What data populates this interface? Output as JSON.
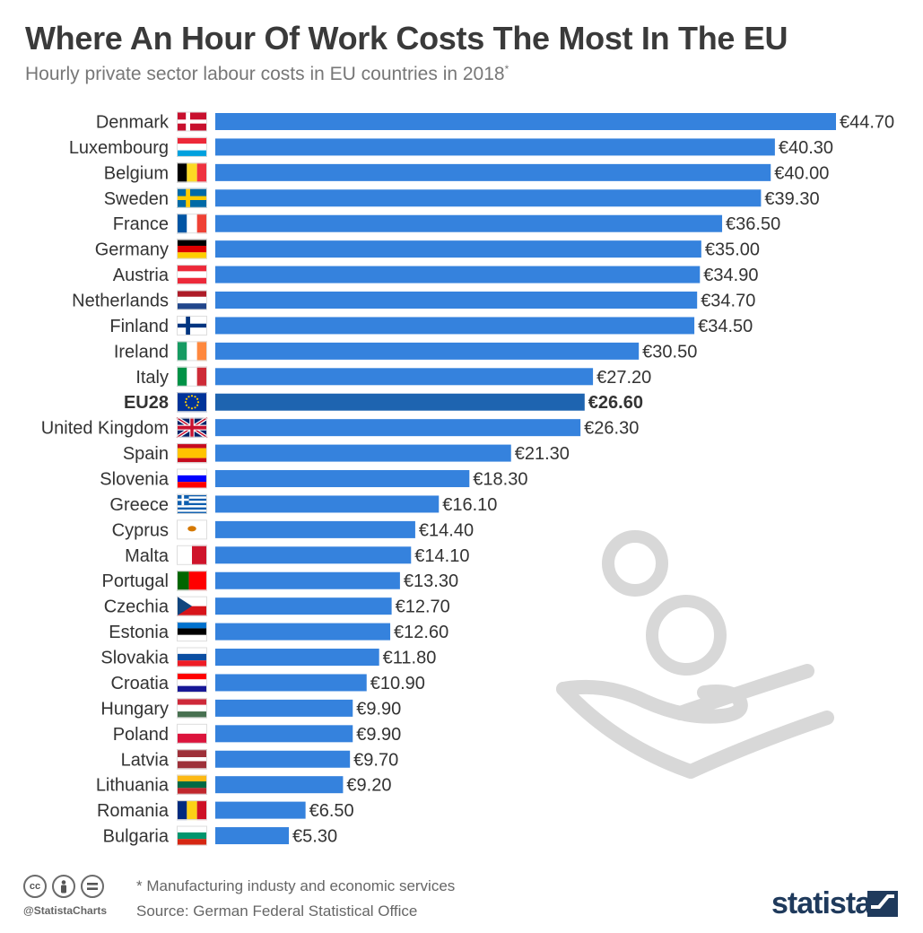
{
  "header": {
    "title": "Where An Hour Of Work Costs The Most In The EU",
    "subtitle": "Hourly private sector labour costs in EU countries in 2018",
    "subtitle_mark": "*"
  },
  "footer": {
    "handle": "@StatistaCharts",
    "footnote": "* Manufacturing industy and economic services",
    "source": "Source: German Federal Statistical Office",
    "brand": "statista"
  },
  "colors": {
    "bar": "#3582dd",
    "highlight_bar": "#1e64b0",
    "deco": "#d8d8d8"
  },
  "icons": [
    "creative-commons-icon",
    "attribution-icon",
    "no-derivatives-icon",
    "hand-coin-icon",
    "statista-logo-icon"
  ],
  "chart_data": {
    "type": "bar",
    "orientation": "horizontal",
    "unit": "€",
    "categories": [
      "Denmark",
      "Luxembourg",
      "Belgium",
      "Sweden",
      "France",
      "Germany",
      "Austria",
      "Netherlands",
      "Finland",
      "Ireland",
      "Italy",
      "EU28",
      "United Kingdom",
      "Spain",
      "Slovenia",
      "Greece",
      "Cyprus",
      "Malta",
      "Portugal",
      "Czechia",
      "Estonia",
      "Slovakia",
      "Croatia",
      "Hungary",
      "Poland",
      "Latvia",
      "Lithuania",
      "Romania",
      "Bulgaria"
    ],
    "values": [
      44.7,
      40.3,
      40.0,
      39.3,
      36.5,
      35.0,
      34.9,
      34.7,
      34.5,
      30.5,
      27.2,
      26.6,
      26.3,
      21.3,
      18.3,
      16.1,
      14.4,
      14.1,
      13.3,
      12.7,
      12.6,
      11.8,
      10.9,
      9.9,
      9.9,
      9.7,
      9.2,
      6.5,
      5.3
    ],
    "labels": [
      "€44.70",
      "€40.30",
      "€40.00",
      "€39.30",
      "€36.50",
      "€35.00",
      "€34.90",
      "€34.70",
      "€34.50",
      "€30.50",
      "€27.20",
      "€26.60",
      "€26.30",
      "€21.30",
      "€18.30",
      "€16.10",
      "€14.40",
      "€14.10",
      "€13.30",
      "€12.70",
      "€12.60",
      "€11.80",
      "€10.90",
      "€9.90",
      "€9.90",
      "€9.70",
      "€9.20",
      "€6.50",
      "€5.30"
    ],
    "highlight": "EU28",
    "flags": [
      {
        "type": "nordic",
        "colors": [
          "#c8102e",
          "#ffffff"
        ]
      },
      {
        "type": "h",
        "colors": [
          "#ed2939",
          "#ffffff",
          "#00a1de"
        ]
      },
      {
        "type": "v",
        "colors": [
          "#000000",
          "#fdda24",
          "#ef3340"
        ]
      },
      {
        "type": "nordic",
        "colors": [
          "#006aa7",
          "#fecc00"
        ]
      },
      {
        "type": "v",
        "colors": [
          "#0055a4",
          "#ffffff",
          "#ef4135"
        ]
      },
      {
        "type": "h",
        "colors": [
          "#000000",
          "#dd0000",
          "#ffce00"
        ]
      },
      {
        "type": "h",
        "colors": [
          "#ed2939",
          "#ffffff",
          "#ed2939"
        ]
      },
      {
        "type": "h",
        "colors": [
          "#ae1c28",
          "#ffffff",
          "#21468b"
        ]
      },
      {
        "type": "nordic",
        "colors": [
          "#ffffff",
          "#003580"
        ]
      },
      {
        "type": "v",
        "colors": [
          "#169b62",
          "#ffffff",
          "#ff883e"
        ]
      },
      {
        "type": "v",
        "colors": [
          "#009246",
          "#ffffff",
          "#ce2b37"
        ]
      },
      {
        "type": "eu",
        "colors": [
          "#003399",
          "#ffcc00"
        ]
      },
      {
        "type": "uk",
        "colors": [
          "#012169",
          "#ffffff",
          "#c8102e"
        ]
      },
      {
        "type": "h",
        "colors": [
          "#c60b1e",
          "#ffc400",
          "#c60b1e"
        ],
        "weights": [
          1,
          2,
          1
        ]
      },
      {
        "type": "h",
        "colors": [
          "#ffffff",
          "#0000ff",
          "#ff0000"
        ]
      },
      {
        "type": "stripes",
        "colors": [
          "#0d5eaf",
          "#ffffff"
        ]
      },
      {
        "type": "plain",
        "colors": [
          "#ffffff",
          "#d57800"
        ]
      },
      {
        "type": "v",
        "colors": [
          "#ffffff",
          "#cf142b"
        ],
        "weights": [
          1,
          1
        ]
      },
      {
        "type": "v",
        "colors": [
          "#006600",
          "#ff0000"
        ],
        "weights": [
          2,
          3
        ]
      },
      {
        "type": "cz",
        "colors": [
          "#ffffff",
          "#d7141a",
          "#11457e"
        ]
      },
      {
        "type": "h",
        "colors": [
          "#0072ce",
          "#000000",
          "#ffffff"
        ]
      },
      {
        "type": "h",
        "colors": [
          "#ffffff",
          "#0b4ea2",
          "#ee1c25"
        ]
      },
      {
        "type": "h",
        "colors": [
          "#ff0000",
          "#ffffff",
          "#171796"
        ]
      },
      {
        "type": "h",
        "colors": [
          "#ce2939",
          "#ffffff",
          "#477050"
        ]
      },
      {
        "type": "h",
        "colors": [
          "#ffffff",
          "#dc143c"
        ],
        "weights": [
          1,
          1
        ]
      },
      {
        "type": "h",
        "colors": [
          "#9e3039",
          "#ffffff",
          "#9e3039"
        ],
        "weights": [
          2,
          1,
          2
        ]
      },
      {
        "type": "h",
        "colors": [
          "#fdb913",
          "#006a44",
          "#c1272d"
        ]
      },
      {
        "type": "v",
        "colors": [
          "#002b7f",
          "#fcd116",
          "#ce1126"
        ]
      },
      {
        "type": "h",
        "colors": [
          "#ffffff",
          "#00966e",
          "#d62612"
        ]
      }
    ]
  }
}
